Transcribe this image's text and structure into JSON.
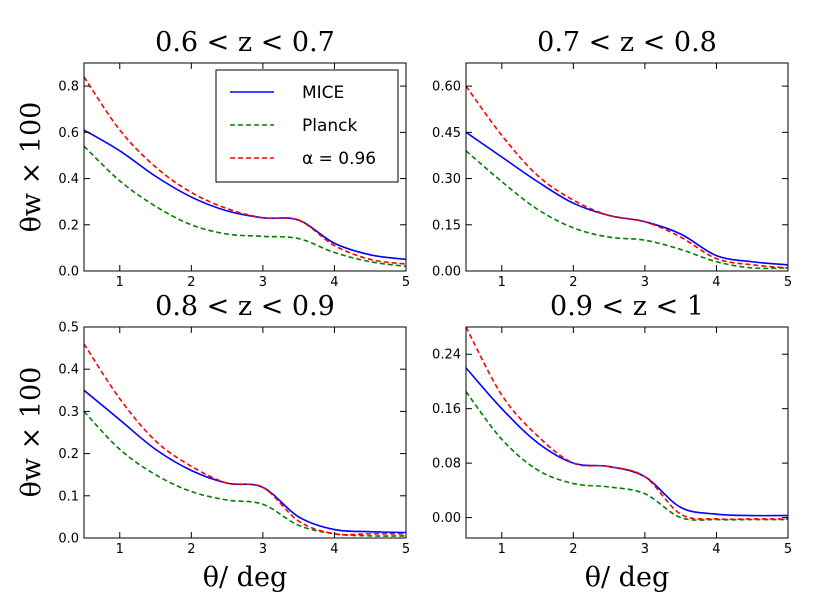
{
  "chart_data": [
    {
      "type": "line",
      "title": "0.6 < z < 0.7",
      "xlabel": "",
      "ylabel": "θw × 100",
      "xlim": [
        0.5,
        5
      ],
      "ylim": [
        0,
        0.9
      ],
      "xticks": [
        "1",
        "2",
        "3",
        "4",
        "5"
      ],
      "yticks": [
        "0.0",
        "0.2",
        "0.4",
        "0.6",
        "0.8"
      ],
      "ytick_values": [
        0,
        0.2,
        0.4,
        0.6,
        0.8
      ],
      "x": [
        0.5,
        1.0,
        1.5,
        2.0,
        2.5,
        3.0,
        3.5,
        4.0,
        4.5,
        5.0
      ],
      "series": [
        {
          "name": "MICE",
          "color": "#0000ff",
          "dash": false,
          "values": [
            0.61,
            0.52,
            0.41,
            0.32,
            0.26,
            0.23,
            0.22,
            0.12,
            0.07,
            0.05
          ]
        },
        {
          "name": "Planck",
          "color": "#008000",
          "dash": true,
          "values": [
            0.54,
            0.39,
            0.28,
            0.2,
            0.16,
            0.15,
            0.14,
            0.08,
            0.04,
            0.02
          ]
        },
        {
          "name": "α = 0.96",
          "color": "#ff0000",
          "dash": true,
          "values": [
            0.84,
            0.61,
            0.45,
            0.34,
            0.27,
            0.23,
            0.22,
            0.11,
            0.05,
            0.03
          ]
        }
      ],
      "legend": {
        "placement": "top-right",
        "entries": [
          {
            "label": "MICE",
            "color": "#0000ff",
            "dash": false
          },
          {
            "label": "Planck",
            "color": "#008000",
            "dash": true
          },
          {
            "label": "α = 0.96",
            "color": "#ff0000",
            "dash": true
          }
        ]
      }
    },
    {
      "type": "line",
      "title": "0.7 < z < 0.8",
      "xlabel": "",
      "ylabel": "",
      "xlim": [
        0.5,
        5
      ],
      "ylim": [
        0,
        0.675
      ],
      "xticks": [
        "1",
        "2",
        "3",
        "4",
        "5"
      ],
      "yticks": [
        "0.00",
        "0.15",
        "0.30",
        "0.45",
        "0.60"
      ],
      "ytick_values": [
        0,
        0.15,
        0.3,
        0.45,
        0.6
      ],
      "x": [
        0.5,
        1.0,
        1.5,
        2.0,
        2.5,
        3.0,
        3.5,
        4.0,
        4.5,
        5.0
      ],
      "series": [
        {
          "name": "MICE",
          "color": "#0000ff",
          "dash": false,
          "values": [
            0.45,
            0.37,
            0.29,
            0.22,
            0.18,
            0.16,
            0.12,
            0.05,
            0.03,
            0.02
          ]
        },
        {
          "name": "Planck",
          "color": "#008000",
          "dash": true,
          "values": [
            0.39,
            0.29,
            0.2,
            0.14,
            0.11,
            0.1,
            0.07,
            0.03,
            0.01,
            0.01
          ]
        },
        {
          "name": "α = 0.96",
          "color": "#ff0000",
          "dash": true,
          "values": [
            0.6,
            0.44,
            0.31,
            0.23,
            0.18,
            0.16,
            0.11,
            0.04,
            0.02,
            0.01
          ]
        }
      ]
    },
    {
      "type": "line",
      "title": "0.8 < z < 0.9",
      "xlabel": "θ/  deg",
      "ylabel": "θw × 100",
      "xlim": [
        0.5,
        5
      ],
      "ylim": [
        0,
        0.5
      ],
      "xticks": [
        "1",
        "2",
        "3",
        "4",
        "5"
      ],
      "yticks": [
        "0.0",
        "0.1",
        "0.2",
        "0.3",
        "0.4",
        "0.5"
      ],
      "ytick_values": [
        0,
        0.1,
        0.2,
        0.3,
        0.4,
        0.5
      ],
      "x": [
        0.5,
        1.0,
        1.5,
        2.0,
        2.5,
        3.0,
        3.5,
        4.0,
        4.5,
        5.0
      ],
      "series": [
        {
          "name": "MICE",
          "color": "#0000ff",
          "dash": false,
          "values": [
            0.35,
            0.28,
            0.21,
            0.16,
            0.13,
            0.12,
            0.05,
            0.02,
            0.015,
            0.013
          ]
        },
        {
          "name": "Planck",
          "color": "#008000",
          "dash": true,
          "values": [
            0.3,
            0.21,
            0.15,
            0.11,
            0.09,
            0.08,
            0.03,
            0.01,
            0.005,
            0.005
          ]
        },
        {
          "name": "α = 0.96",
          "color": "#ff0000",
          "dash": true,
          "values": [
            0.46,
            0.33,
            0.23,
            0.17,
            0.13,
            0.12,
            0.04,
            0.01,
            0.01,
            0.01
          ]
        }
      ]
    },
    {
      "type": "line",
      "title": "0.9 < z < 1",
      "xlabel": "θ/  deg",
      "ylabel": "",
      "xlim": [
        0.5,
        5
      ],
      "ylim": [
        -0.03,
        0.28
      ],
      "xticks": [
        "1",
        "2",
        "3",
        "4",
        "5"
      ],
      "yticks": [
        "0.00",
        "0.08",
        "0.16",
        "0.24"
      ],
      "ytick_values": [
        0,
        0.08,
        0.16,
        0.24
      ],
      "x": [
        0.5,
        1.0,
        1.5,
        2.0,
        2.5,
        3.0,
        3.5,
        4.0,
        4.5,
        5.0
      ],
      "series": [
        {
          "name": "MICE",
          "color": "#0000ff",
          "dash": false,
          "values": [
            0.22,
            0.16,
            0.11,
            0.08,
            0.075,
            0.06,
            0.015,
            0.005,
            0.003,
            0.003
          ]
        },
        {
          "name": "Planck",
          "color": "#008000",
          "dash": true,
          "values": [
            0.185,
            0.115,
            0.07,
            0.05,
            0.045,
            0.035,
            0.0,
            -0.003,
            -0.003,
            -0.003
          ]
        },
        {
          "name": "α = 0.96",
          "color": "#ff0000",
          "dash": true,
          "values": [
            0.28,
            0.18,
            0.12,
            0.08,
            0.075,
            0.06,
            0.005,
            -0.002,
            -0.002,
            -0.002
          ]
        }
      ]
    }
  ]
}
